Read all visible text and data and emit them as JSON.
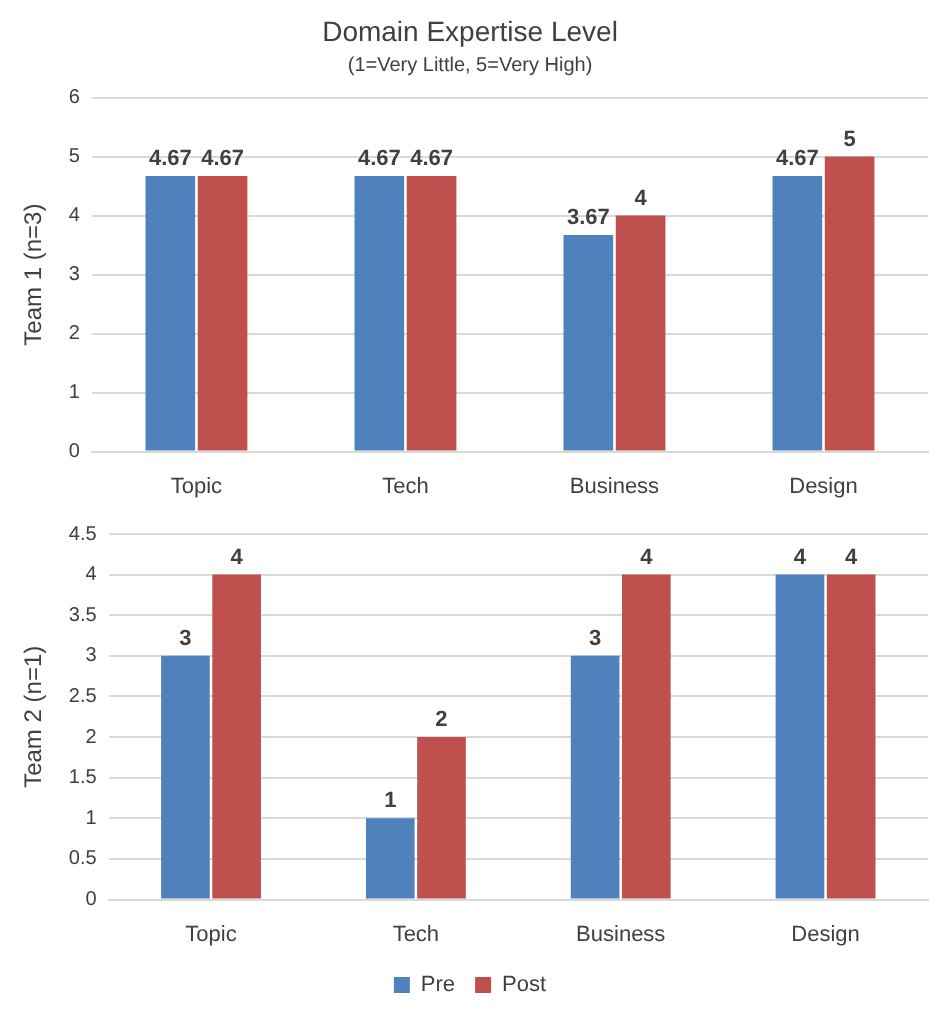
{
  "chart_data": [
    {
      "type": "bar",
      "title": "Domain Expertise Level",
      "subtitle": "(1=Very Little, 5=Very High)",
      "ylabel": "Team 1 (n=3)",
      "categories": [
        "Topic",
        "Tech",
        "Business",
        "Design"
      ],
      "series": [
        {
          "color": "#4f81bd",
          "values": [
            4.67,
            4.67,
            3.67,
            4.67
          ]
        },
        {
          "color": "#c0504d",
          "values": [
            4.67,
            4.67,
            4,
            5
          ]
        }
      ],
      "ylim": [
        0,
        6
      ],
      "yticks": [
        0,
        1,
        2,
        3,
        4,
        5,
        6
      ],
      "grid": "y",
      "data_labels": true
    },
    {
      "type": "bar",
      "ylabel": "Team 2 (n=1)",
      "categories": [
        "Topic",
        "Tech",
        "Business",
        "Design"
      ],
      "series": [
        {
          "name": "Pre",
          "color": "#4f81bd",
          "values": [
            3,
            1,
            3,
            4
          ]
        },
        {
          "name": "Post",
          "color": "#c0504d",
          "values": [
            4,
            2,
            4,
            4
          ]
        }
      ],
      "ylim": [
        0,
        4.5
      ],
      "yticks": [
        0,
        0.5,
        1,
        1.5,
        2,
        2.5,
        3,
        3.5,
        4,
        4.5
      ],
      "grid": "y",
      "data_labels": true,
      "legend": "bottom"
    }
  ]
}
